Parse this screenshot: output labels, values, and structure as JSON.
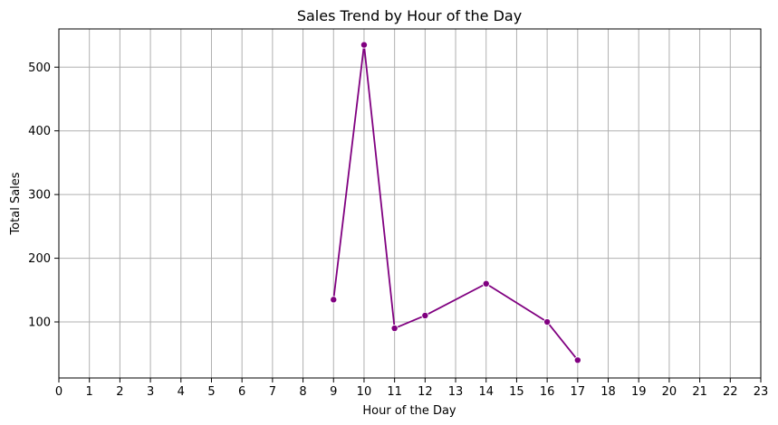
{
  "chart_data": {
    "type": "line",
    "title": "Sales Trend by Hour of the Day",
    "xlabel": "Hour of the Day",
    "ylabel": "Total Sales",
    "x": [
      9,
      10,
      11,
      12,
      14,
      16,
      17
    ],
    "y": [
      135,
      535,
      90,
      110,
      160,
      100,
      40
    ],
    "xlim": [
      0,
      23
    ],
    "ylim": [
      12,
      560
    ],
    "x_ticks": [
      0,
      1,
      2,
      3,
      4,
      5,
      6,
      7,
      8,
      9,
      10,
      11,
      12,
      13,
      14,
      15,
      16,
      17,
      18,
      19,
      20,
      21,
      22,
      23
    ],
    "y_ticks": [
      100,
      200,
      300,
      400,
      500
    ],
    "grid": true,
    "line_color": "#800080",
    "marker": "circle",
    "grid_color": "#b0b0b0"
  }
}
